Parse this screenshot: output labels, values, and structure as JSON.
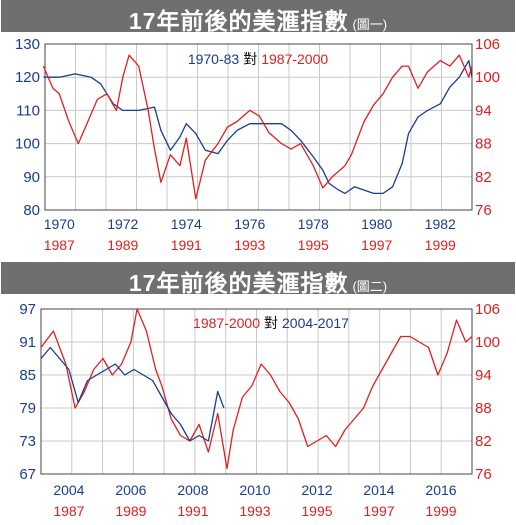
{
  "colors": {
    "blue": "#1a3d8f",
    "red": "#e02020",
    "header": "#6f6f6f",
    "grid": "#c8c8c8"
  },
  "chart_data": [
    {
      "type": "line",
      "title": "17年前後的美滙指數",
      "subtitle": "(圖一)",
      "legend": {
        "part1": "1970-83",
        "connector": "對",
        "part2": "1987-2000",
        "position": "top-center"
      },
      "left_axis": {
        "ticks": [
          130,
          120,
          110,
          100,
          90,
          80
        ],
        "range": [
          80,
          130
        ]
      },
      "right_axis": {
        "ticks": [
          106,
          100,
          94,
          88,
          82,
          76
        ],
        "range": [
          76,
          106
        ]
      },
      "x_labels_top": [
        "1970",
        "1972",
        "1974",
        "1976",
        "1978",
        "1980",
        "1982"
      ],
      "x_labels_bottom": [
        "1987",
        "1989",
        "1991",
        "1993",
        "1995",
        "1997",
        "1999"
      ],
      "grid": true,
      "series": [
        {
          "name": "1970-83",
          "axis": "left",
          "x": [
            1969.5,
            1970.0,
            1970.5,
            1971.0,
            1971.3,
            1971.7,
            1972.0,
            1972.5,
            1973.0,
            1973.2,
            1973.5,
            1973.8,
            1974.0,
            1974.3,
            1974.6,
            1975.0,
            1975.3,
            1975.6,
            1976.0,
            1976.5,
            1977.0,
            1977.3,
            1977.6,
            1978.0,
            1978.3,
            1978.5,
            1978.8,
            1979.0,
            1979.3,
            1979.6,
            1979.9,
            1980.2,
            1980.5,
            1980.8,
            1981.0,
            1981.3,
            1981.6,
            1982.0,
            1982.3,
            1982.6,
            1982.9,
            1983.0
          ],
          "values": [
            120,
            120,
            121,
            120,
            118,
            112,
            110,
            110,
            111,
            104,
            98,
            102,
            106,
            103,
            98,
            97,
            101,
            104,
            106,
            106,
            106,
            104,
            101,
            96,
            92,
            88,
            86,
            85,
            87,
            86,
            85,
            85,
            87,
            94,
            103,
            108,
            110,
            112,
            117,
            120,
            125,
            120
          ]
        },
        {
          "name": "1987-2000",
          "axis": "right",
          "x": [
            1969.5,
            1969.8,
            1970.0,
            1970.3,
            1970.6,
            1970.9,
            1971.2,
            1971.5,
            1971.8,
            1972.0,
            1972.2,
            1972.5,
            1972.8,
            1973.0,
            1973.2,
            1973.5,
            1973.8,
            1974.0,
            1974.3,
            1974.6,
            1975.0,
            1975.3,
            1975.6,
            1976.0,
            1976.3,
            1976.6,
            1977.0,
            1977.3,
            1977.6,
            1978.0,
            1978.3,
            1978.6,
            1979.0,
            1979.2,
            1979.4,
            1979.6,
            1979.9,
            1980.2,
            1980.5,
            1980.8,
            1981.0,
            1981.3,
            1981.6,
            1982.0,
            1982.3,
            1982.6,
            1982.9,
            1983.0
          ],
          "values": [
            102,
            98,
            97,
            92,
            88,
            92,
            96,
            97,
            94,
            100,
            104,
            102,
            94,
            87,
            81,
            86,
            84,
            89,
            78,
            85,
            88,
            91,
            92,
            94,
            93,
            90,
            88,
            87,
            88,
            84,
            80,
            82,
            84,
            86,
            89,
            92,
            95,
            97,
            100,
            102,
            102,
            98,
            101,
            103,
            102,
            104,
            100,
            102
          ]
        }
      ]
    },
    {
      "type": "line",
      "title": "17年前後的美滙指數",
      "subtitle": "(圖二)",
      "legend": {
        "part1": "1987-2000",
        "connector": "對",
        "part2": "2004-2017",
        "position": "top-center"
      },
      "left_axis": {
        "ticks": [
          97,
          91,
          85,
          79,
          73,
          67
        ],
        "range": [
          67,
          97
        ]
      },
      "right_axis": {
        "ticks": [
          106,
          100,
          94,
          88,
          82,
          76
        ],
        "range": [
          76,
          106
        ]
      },
      "x_labels_top": [
        "2004",
        "2006",
        "2008",
        "2010",
        "2012",
        "2014",
        "2016"
      ],
      "x_labels_bottom": [
        "1987",
        "1989",
        "1991",
        "1993",
        "1995",
        "1997",
        "1999"
      ],
      "grid": true,
      "series": [
        {
          "name": "1987-2000",
          "axis": "right",
          "x": [
            2003.1,
            2003.5,
            2003.9,
            2004.2,
            2004.5,
            2004.8,
            2005.1,
            2005.4,
            2005.7,
            2006.0,
            2006.2,
            2006.5,
            2006.8,
            2007.0,
            2007.3,
            2007.6,
            2007.9,
            2008.2,
            2008.5,
            2008.8,
            2009.1,
            2009.3,
            2009.6,
            2009.9,
            2010.2,
            2010.5,
            2010.8,
            2011.1,
            2011.4,
            2011.7,
            2012.0,
            2012.3,
            2012.6,
            2012.9,
            2013.2,
            2013.5,
            2013.8,
            2014.1,
            2014.4,
            2014.7,
            2015.0,
            2015.3,
            2015.6,
            2015.9,
            2016.2,
            2016.5,
            2016.8,
            2017.0
          ],
          "values": [
            99,
            102,
            96,
            88,
            91,
            95,
            97,
            94,
            96,
            100,
            106,
            102,
            95,
            92,
            86,
            83,
            82,
            85,
            80,
            87,
            77,
            84,
            90,
            92,
            96,
            94,
            91,
            89,
            86,
            81,
            82,
            83,
            81,
            84,
            86,
            88,
            92,
            95,
            98,
            101,
            101,
            100,
            99,
            94,
            98,
            104,
            100,
            101
          ]
        },
        {
          "name": "2004-2017",
          "axis": "left",
          "x": [
            2003.1,
            2003.4,
            2003.7,
            2004.0,
            2004.3,
            2004.6,
            2004.9,
            2005.2,
            2005.5,
            2005.8,
            2006.1,
            2006.4,
            2006.7,
            2007.0,
            2007.3,
            2007.6,
            2007.9,
            2008.2,
            2008.5,
            2008.8,
            2009.0
          ],
          "values": [
            88,
            90,
            88,
            86,
            80,
            84,
            85,
            86,
            87,
            85,
            86,
            85,
            84,
            81,
            78,
            76,
            73,
            74,
            73,
            82,
            79
          ]
        }
      ]
    }
  ]
}
